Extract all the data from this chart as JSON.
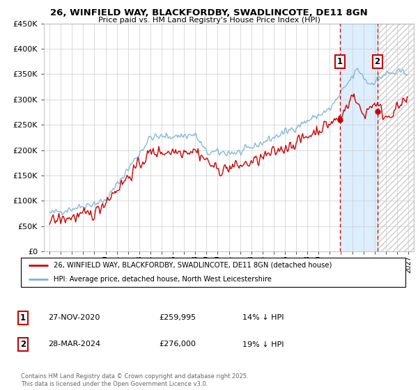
{
  "title_line1": "26, WINFIELD WAY, BLACKFORDBY, SWADLINCOTE, DE11 8GN",
  "title_line2": "Price paid vs. HM Land Registry's House Price Index (HPI)",
  "ylim": [
    0,
    450000
  ],
  "yticks": [
    0,
    50000,
    100000,
    150000,
    200000,
    250000,
    300000,
    350000,
    400000,
    450000
  ],
  "ytick_labels": [
    "£0",
    "£50K",
    "£100K",
    "£150K",
    "£200K",
    "£250K",
    "£300K",
    "£350K",
    "£400K",
    "£450K"
  ],
  "xlim_start": 1994.5,
  "xlim_end": 2027.5,
  "hpi_color": "#7ab3d4",
  "price_color": "#cc0000",
  "point1_x": 2020.92,
  "point1_y": 259995,
  "point2_x": 2024.24,
  "point2_y": 276000,
  "point1_label": "1",
  "point2_label": "2",
  "point1_date": "27-NOV-2020",
  "point1_price": "£259,995",
  "point1_hpi": "14% ↓ HPI",
  "point2_date": "28-MAR-2024",
  "point2_price": "£276,000",
  "point2_hpi": "19% ↓ HPI",
  "legend_line1": "26, WINFIELD WAY, BLACKFORDBY, SWADLINCOTE, DE11 8GN (detached house)",
  "legend_line2": "HPI: Average price, detached house, North West Leicestershire",
  "copyright_text": "Contains HM Land Registry data © Crown copyright and database right 2025.\nThis data is licensed under the Open Government Licence v3.0.",
  "shaded_region_color": "#ddeeff",
  "background_color": "#ffffff",
  "grid_color": "#cccccc"
}
